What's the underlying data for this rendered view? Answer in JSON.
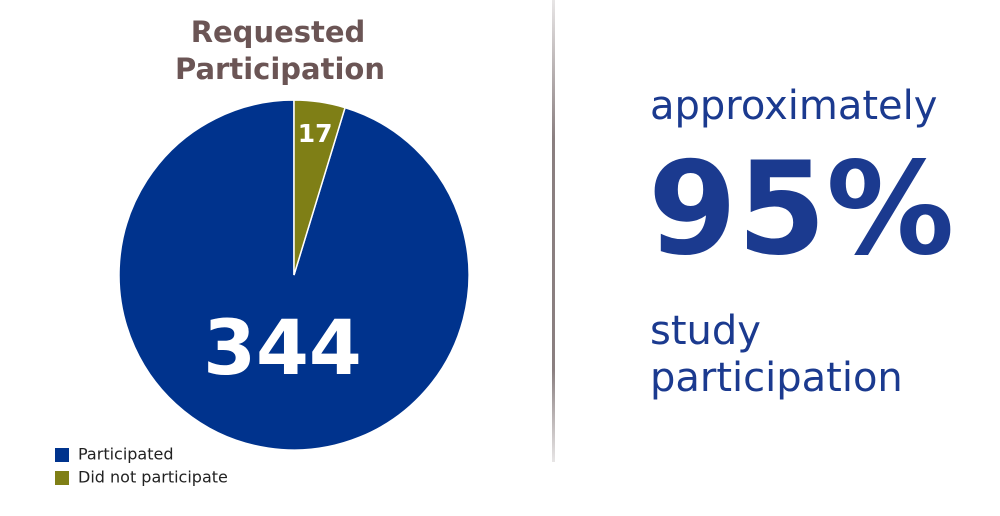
{
  "chart_data": {
    "type": "pie",
    "title": [
      "Requested",
      "Participation"
    ],
    "categories": [
      "Participated",
      "Did not participate"
    ],
    "values": [
      344,
      17
    ],
    "colors": [
      "#00338d",
      "#7f7f16"
    ],
    "legend": "bottom-left"
  },
  "callout": {
    "lead": "approximately",
    "figure": "95%",
    "tail": [
      "study",
      "participation"
    ]
  }
}
